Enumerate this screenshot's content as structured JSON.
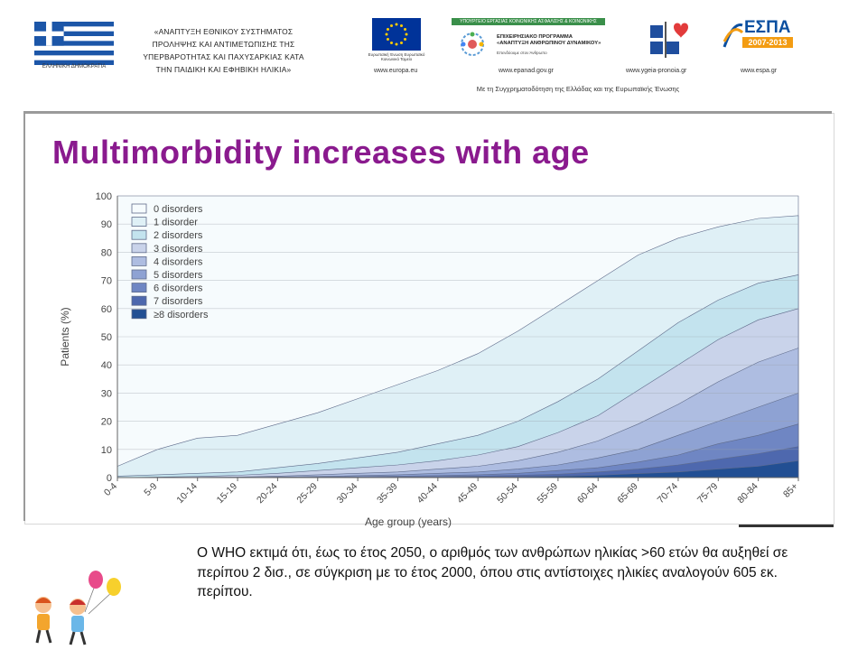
{
  "header": {
    "flag_caption": "ΕΛΛΗΝΙΚΗ ΔΗΜΟΚΡΑΤΙΑ",
    "project_lines": [
      "«ΑΝΑΠΤΥΞΗ ΕΘΝΙΚΟΥ ΣΥΣΤΗΜΑΤΟΣ",
      "ΠΡΟΛΗΨΗΣ ΚΑΙ ΑΝΤΙΜΕΤΩΠΙΣΗΣ ΤΗΣ",
      "ΥΠΕΡΒΑΡΟΤΗΤΑΣ ΚΑΙ ΠΑΧΥΣΑΡΚΙΑΣ ΚΑΤΑ",
      "ΤΗΝ ΠΑΙΔΙΚΗ ΚΑΙ ΕΦΗΒΙΚΗ ΗΛΙΚΙΑ»"
    ],
    "eu_caption": "Ευρωπαϊκή Ένωση Ευρωπαϊκό Κοινωνικό Ταμείο",
    "op_band": "ΥΠΟΥΡΓΕΙΟ ΕΡΓΑΣΙΑΣ ΚΟΙΝΩΝΙΚΗΣ ΑΣΦΑΛΙΣΗΣ & ΚΟΙΝΩΝΙΚΗΣ ΑΛΛΗΛΕΓΓΥΗΣ",
    "op_title": "ΕΠΙΧΕΙΡΗΣΙΑΚΟ ΠΡΟΓΡΑΜΜΑ «ΑΝΑΠΤΥΞΗ ΑΝΘΡΩΠΙΝΟΥ ΔΥΝΑΜΙΚΟΥ»",
    "op_sub": "Επενδύουμε στον Άνθρωπο",
    "espa_title": "ΕΣΠΑ",
    "espa_years": "2007-2013",
    "urls": [
      "www.europa.eu",
      "www.epanad.gov.gr",
      "www.ygeia-pronoia.gr",
      "www.espa.gr"
    ],
    "cofund": "Με τη Συγχρηματοδότηση της Ελλάδας και της Ευρωπαϊκής Ένωσης"
  },
  "slide_title": "Multimorbidity increases with age",
  "caption": "Ο WHO εκτιμά ότι, έως το έτος 2050, ο αριθμός των ανθρώπων ηλικίας >60 ετών θα αυξηθεί σε περίπου 2 δισ., σε σύγκριση με το έτος 2000, όπου στις αντίστοιχες ηλικίες αναλογούν 605 εκ. περίπου.",
  "chart_data": {
    "type": "area",
    "stacked_cumulative": true,
    "title": "",
    "xlabel": "Age group (years)",
    "ylabel": "Patients (%)",
    "ylim": [
      0,
      100
    ],
    "yticks": [
      0,
      10,
      20,
      30,
      40,
      50,
      60,
      70,
      80,
      90,
      100
    ],
    "grid": true,
    "legend_position": "top-left",
    "categories": [
      "0-4",
      "5-9",
      "10-14",
      "15-19",
      "20-24",
      "25-29",
      "30-34",
      "35-39",
      "40-44",
      "45-49",
      "50-54",
      "55-59",
      "60-64",
      "65-69",
      "70-74",
      "75-79",
      "80-84",
      "85+"
    ],
    "series": [
      {
        "name": "0 disorders",
        "color": "#f6fbfd",
        "values": [
          100,
          100,
          100,
          100,
          100,
          100,
          100,
          100,
          100,
          100,
          100,
          100,
          100,
          100,
          100,
          100,
          100,
          100
        ]
      },
      {
        "name": "1 disorder",
        "color": "#dff0f6",
        "values": [
          4,
          10,
          14,
          15,
          19,
          23,
          28,
          33,
          38,
          44,
          52,
          61,
          70,
          79,
          85,
          89,
          92,
          93
        ]
      },
      {
        "name": "2 disorders",
        "color": "#c3e3ee",
        "values": [
          0.5,
          1,
          1.5,
          2,
          3.5,
          5,
          7,
          9,
          12,
          15,
          20,
          27,
          35,
          45,
          55,
          63,
          69,
          72
        ]
      },
      {
        "name": "3 disorders",
        "color": "#c9d3ea",
        "values": [
          0,
          0.2,
          0.4,
          0.8,
          1.5,
          2.5,
          3.5,
          4.5,
          6,
          8,
          11,
          16,
          22,
          31,
          40,
          49,
          56,
          60
        ]
      },
      {
        "name": "4 disorders",
        "color": "#aebde1",
        "values": [
          0,
          0,
          0.1,
          0.2,
          0.5,
          1,
          1.5,
          2,
          3,
          4,
          6,
          9,
          13,
          19,
          26,
          34,
          41,
          46
        ]
      },
      {
        "name": "5 disorders",
        "color": "#8ea2d3",
        "values": [
          0,
          0,
          0,
          0.1,
          0.2,
          0.4,
          0.7,
          1,
          1.5,
          2,
          3,
          4.5,
          7,
          10,
          15,
          20,
          25,
          30
        ]
      },
      {
        "name": "6 disorders",
        "color": "#6f86c3",
        "values": [
          0,
          0,
          0,
          0,
          0.1,
          0.2,
          0.3,
          0.5,
          0.7,
          1,
          1.5,
          2.5,
          3.5,
          5.5,
          8,
          12,
          15,
          19
        ]
      },
      {
        "name": "7 disorders",
        "color": "#4e68ae",
        "values": [
          0,
          0,
          0,
          0,
          0,
          0.1,
          0.1,
          0.2,
          0.3,
          0.5,
          0.8,
          1.2,
          2,
          3,
          4.5,
          6.5,
          8.5,
          11
        ]
      },
      {
        "name": "≥8 disorders",
        "color": "#224f93",
        "values": [
          0,
          0,
          0,
          0,
          0,
          0,
          0,
          0.1,
          0.1,
          0.2,
          0.3,
          0.5,
          0.8,
          1.4,
          2,
          3,
          4,
          6
        ]
      }
    ]
  }
}
